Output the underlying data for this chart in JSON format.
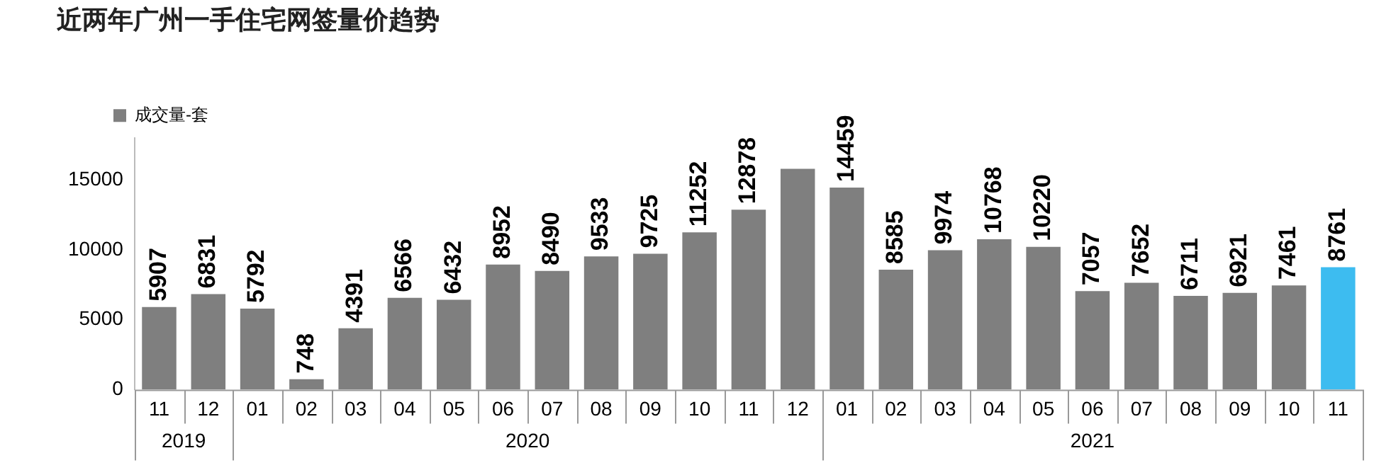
{
  "chart_data": {
    "type": "bar",
    "title": "近两年广州一手住宅网签量价趋势",
    "categories": [
      "11",
      "12",
      "01",
      "02",
      "03",
      "04",
      "05",
      "06",
      "07",
      "08",
      "09",
      "10",
      "11",
      "12",
      "01",
      "02",
      "03",
      "04",
      "05",
      "06",
      "07",
      "08",
      "09",
      "10",
      "11"
    ],
    "series": [
      {
        "name": "成交量-套",
        "color": "#7f7f7f",
        "colors": [
          "#7f7f7f",
          "#7f7f7f",
          "#7f7f7f",
          "#7f7f7f",
          "#7f7f7f",
          "#7f7f7f",
          "#7f7f7f",
          "#7f7f7f",
          "#7f7f7f",
          "#7f7f7f",
          "#7f7f7f",
          "#7f7f7f",
          "#7f7f7f",
          "#7f7f7f",
          "#7f7f7f",
          "#7f7f7f",
          "#7f7f7f",
          "#7f7f7f",
          "#7f7f7f",
          "#7f7f7f",
          "#7f7f7f",
          "#7f7f7f",
          "#7f7f7f",
          "#7f7f7f",
          "#3dbcf0"
        ],
        "values": [
          5907,
          6831,
          5792,
          748,
          4391,
          6566,
          6432,
          8952,
          8490,
          9533,
          9725,
          11252,
          12878,
          15800,
          14459,
          8585,
          9974,
          10768,
          10220,
          7057,
          7652,
          6711,
          6921,
          7461,
          8761
        ],
        "value_labels": [
          "5907",
          "6831",
          "5792",
          "748",
          "4391",
          "6566",
          "6432",
          "8952",
          "8490",
          "9533",
          "9725",
          "11252",
          "12878",
          null,
          "14459",
          "8585",
          "9974",
          "10768",
          "10220",
          "7057",
          "7652",
          "6711",
          "6921",
          "7461",
          "8761"
        ]
      }
    ],
    "ylim": [
      0,
      18000
    ],
    "yticks": [
      0,
      5000,
      10000,
      15000
    ],
    "annotations": [
      "2019",
      "2020",
      "2021"
    ],
    "grid": false,
    "legend": "top left"
  }
}
